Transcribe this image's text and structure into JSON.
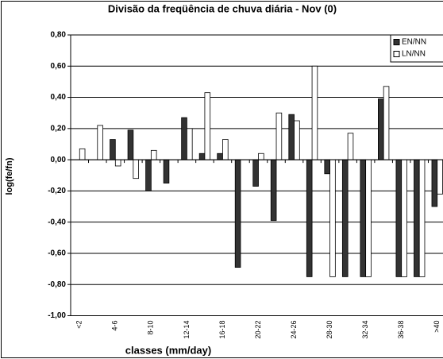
{
  "chart_data": {
    "type": "bar",
    "title": "Divisão da freqüência de chuva diária - Nov (0)",
    "xlabel": "classes (mm/day)",
    "ylabel": "log(fe/fn)",
    "categories": [
      "<2",
      null,
      "4-6",
      null,
      "8-10",
      null,
      "12-14",
      null,
      "16-18",
      null,
      "20-22",
      null,
      "24-26",
      null,
      "28-30",
      null,
      "32-34",
      null,
      "36-38",
      null,
      ">40"
    ],
    "series": [
      {
        "name": "EN/NN",
        "color": "#333333",
        "values": [
          0,
          0,
          0.13,
          0.19,
          -0.2,
          -0.15,
          0.27,
          0.04,
          0.04,
          -0.69,
          -0.17,
          -0.39,
          0.29,
          -0.75,
          -0.09,
          -0.75,
          -0.75,
          0.39,
          -0.75,
          -0.75,
          -0.3
        ]
      },
      {
        "name": "LN/NN",
        "color": "#ffffff",
        "values": [
          0.07,
          0.22,
          -0.04,
          -0.12,
          0.06,
          0,
          0.2,
          0.43,
          0.13,
          0,
          0.04,
          0.3,
          0.25,
          0.6,
          -0.75,
          0.17,
          -0.75,
          0.47,
          -0.75,
          -0.75,
          -0.22
        ]
      }
    ],
    "ylim": [
      -1.0,
      0.8
    ],
    "yticks": [
      {
        "value": -1.0,
        "label": "-1,00"
      },
      {
        "value": -0.8,
        "label": "-0,80"
      },
      {
        "value": -0.6,
        "label": "-0,60"
      },
      {
        "value": -0.4,
        "label": "-0,40"
      },
      {
        "value": -0.2,
        "label": "-0,20"
      },
      {
        "value": 0,
        "label": "0,00"
      },
      {
        "value": 0.2,
        "label": "0,20"
      },
      {
        "value": 0.4,
        "label": "0,40"
      },
      {
        "value": 0.6,
        "label": "0,60"
      },
      {
        "value": 0.8,
        "label": "0,80"
      }
    ],
    "grid": true,
    "legend": "top-right"
  }
}
